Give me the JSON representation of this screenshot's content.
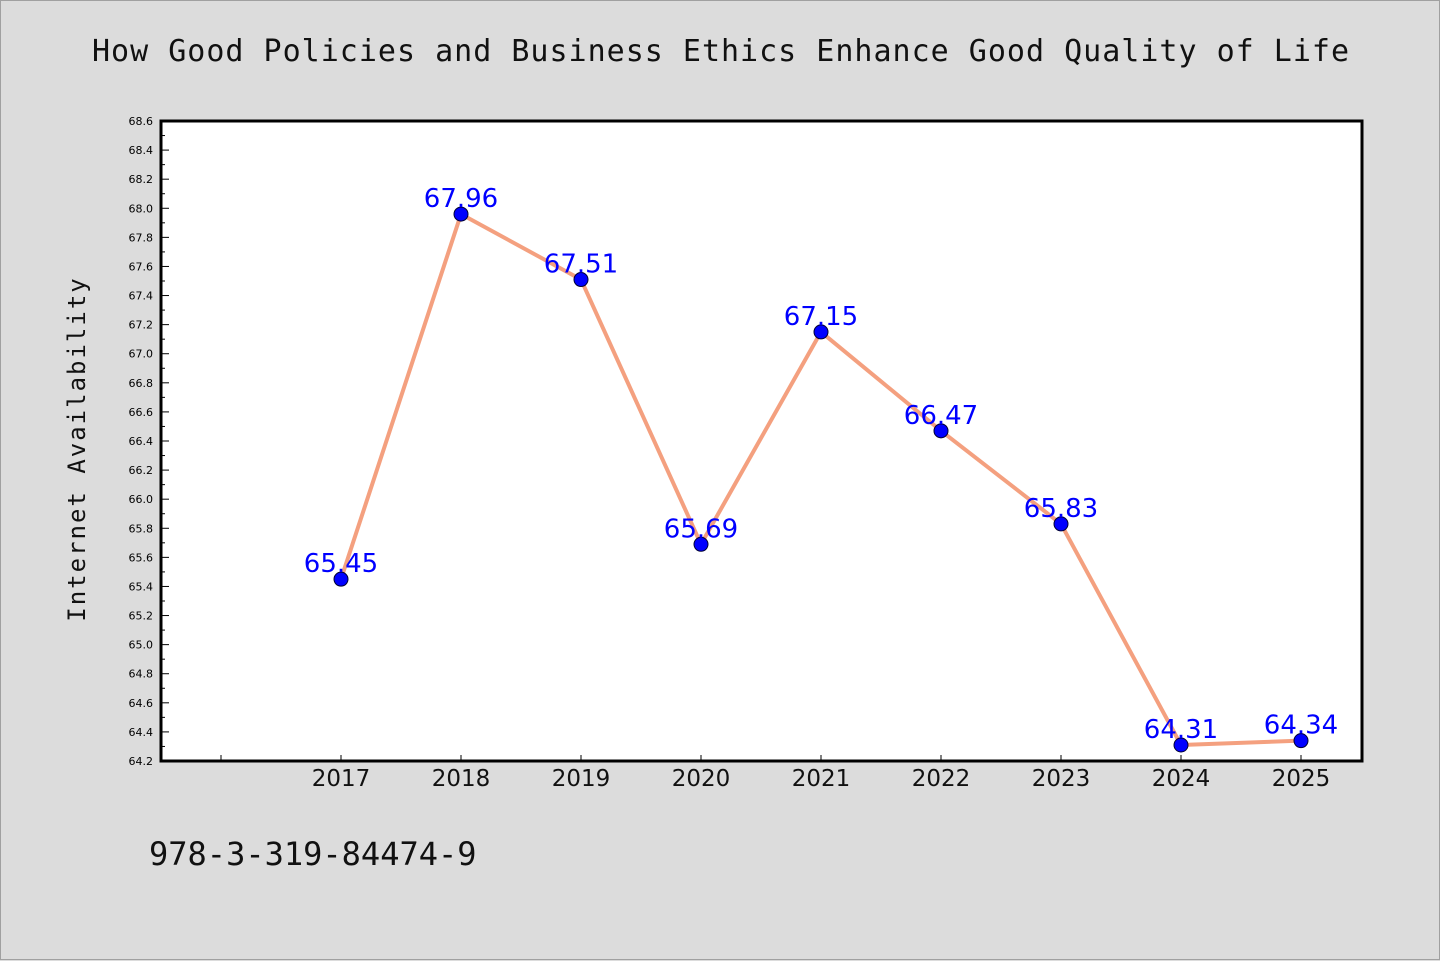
{
  "chart_data": {
    "type": "line",
    "title": "How Good Policies and Business Ethics Enhance Good Quality of Life",
    "xlabel": "",
    "ylabel": "Internet Availability",
    "categories": [
      "2017",
      "2018",
      "2019",
      "2020",
      "2021",
      "2022",
      "2023",
      "2024",
      "2025"
    ],
    "series": [
      {
        "values": [
          65.45,
          67.96,
          67.51,
          65.69,
          67.15,
          66.47,
          65.83,
          64.31,
          64.34
        ],
        "labels": [
          "65.45",
          "67.96",
          "67.51",
          "65.69",
          "67.15",
          "66.47",
          "65.83",
          "64.31",
          "64.34"
        ]
      }
    ],
    "ylim": [
      64.2,
      68.6
    ],
    "yticks": [
      "64.2",
      "64.4",
      "64.6",
      "64.8",
      "65.0",
      "65.2",
      "65.4",
      "65.6",
      "65.8",
      "66.0",
      "66.2",
      "66.4",
      "66.6",
      "66.8",
      "67.0",
      "67.2",
      "67.4",
      "67.6",
      "67.8",
      "68.0",
      "68.2",
      "68.4",
      "68.6"
    ],
    "grid": false,
    "colors": {
      "line": "#f4a07f",
      "marker": "#0000ff",
      "data_label": "#0000ff",
      "plot_bg": "#ffffff",
      "page_bg": "#dcdcdc"
    }
  },
  "footer": {
    "code": "978-3-319-84474-9"
  }
}
